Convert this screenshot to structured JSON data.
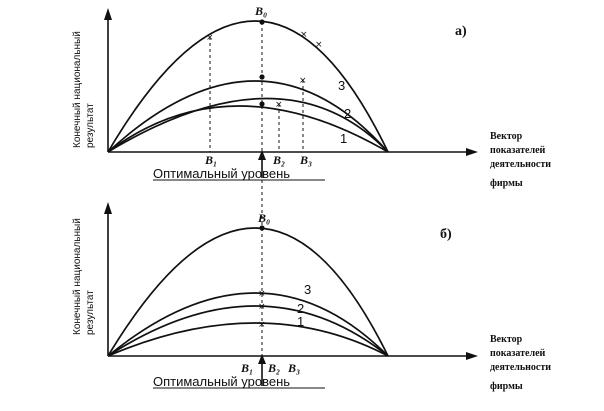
{
  "panel_a": {
    "label": "а)",
    "y_axis_line1": "Конечный национальный",
    "y_axis_line2": "результат",
    "x_axis_caption": "Оптимальный уровень",
    "x_axis_side": [
      "Вектор",
      "показателей",
      "деятельности",
      "фирмы"
    ],
    "top_point": "B₀",
    "points": [
      "B₁",
      "B₂",
      "B₃"
    ],
    "curve_labels": [
      "1",
      "2",
      "3"
    ]
  },
  "panel_b": {
    "label": "б)",
    "y_axis_line1": "Конечный национальный",
    "y_axis_line2": "результат",
    "x_axis_caption": "Оптимальный уровень",
    "x_axis_side": [
      "Вектор",
      "показателей",
      "деятельности",
      "фирмы"
    ],
    "top_point": "B₀",
    "points": [
      "B₁",
      "B₂",
      "B₃"
    ],
    "curve_labels": [
      "3",
      "2",
      "1"
    ]
  }
}
